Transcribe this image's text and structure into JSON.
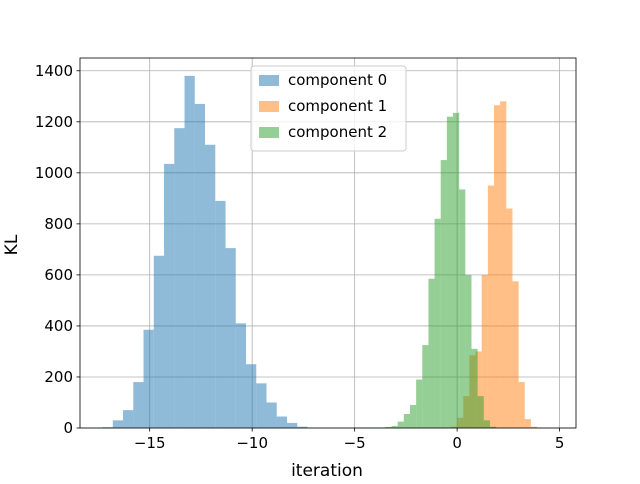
{
  "chart_data": {
    "type": "bar",
    "title": "",
    "xlabel": "iteration",
    "ylabel": "KL",
    "xlim": [
      -18.4,
      5.8
    ],
    "ylim": [
      0,
      1450
    ],
    "xticks": [
      -15,
      -10,
      -5,
      0,
      5
    ],
    "xtick_labels": [
      "−15",
      "−10",
      "−5",
      "0",
      "5"
    ],
    "yticks": [
      0,
      200,
      400,
      600,
      800,
      1000,
      1200,
      1400
    ],
    "ytick_labels": [
      "0",
      "200",
      "400",
      "600",
      "800",
      "1000",
      "1200",
      "1400"
    ],
    "grid": true,
    "legend_position": "top-center",
    "series": [
      {
        "name": "component 0",
        "color": "#1f77b4",
        "opacity": 0.5,
        "bins": [
          {
            "x0": -17.3,
            "x1": -16.8,
            "count": 3
          },
          {
            "x0": -16.8,
            "x1": -16.3,
            "count": 30
          },
          {
            "x0": -16.3,
            "x1": -15.8,
            "count": 70
          },
          {
            "x0": -15.8,
            "x1": -15.3,
            "count": 180
          },
          {
            "x0": -15.3,
            "x1": -14.8,
            "count": 385
          },
          {
            "x0": -14.8,
            "x1": -14.3,
            "count": 675
          },
          {
            "x0": -14.3,
            "x1": -13.8,
            "count": 1035
          },
          {
            "x0": -13.8,
            "x1": -13.3,
            "count": 1175
          },
          {
            "x0": -13.3,
            "x1": -12.8,
            "count": 1380
          },
          {
            "x0": -12.8,
            "x1": -12.3,
            "count": 1270
          },
          {
            "x0": -12.3,
            "x1": -11.8,
            "count": 1110
          },
          {
            "x0": -11.8,
            "x1": -11.3,
            "count": 890
          },
          {
            "x0": -11.3,
            "x1": -10.8,
            "count": 705
          },
          {
            "x0": -10.8,
            "x1": -10.3,
            "count": 410
          },
          {
            "x0": -10.3,
            "x1": -9.8,
            "count": 250
          },
          {
            "x0": -9.8,
            "x1": -9.3,
            "count": 175
          },
          {
            "x0": -9.3,
            "x1": -8.8,
            "count": 100
          },
          {
            "x0": -8.8,
            "x1": -8.3,
            "count": 45
          },
          {
            "x0": -8.3,
            "x1": -7.8,
            "count": 20
          },
          {
            "x0": -7.8,
            "x1": -7.3,
            "count": 5
          }
        ]
      },
      {
        "name": "component 1",
        "color": "#ff7f0e",
        "opacity": 0.5,
        "bins": [
          {
            "x0": -0.3,
            "x1": 0.0,
            "count": 5
          },
          {
            "x0": 0.0,
            "x1": 0.3,
            "count": 40
          },
          {
            "x0": 0.3,
            "x1": 0.6,
            "count": 125
          },
          {
            "x0": 0.6,
            "x1": 0.9,
            "count": 285
          },
          {
            "x0": 0.9,
            "x1": 1.2,
            "count": 300
          },
          {
            "x0": 1.2,
            "x1": 1.5,
            "count": 600
          },
          {
            "x0": 1.5,
            "x1": 1.8,
            "count": 950
          },
          {
            "x0": 1.8,
            "x1": 2.1,
            "count": 1265
          },
          {
            "x0": 2.1,
            "x1": 2.4,
            "count": 1280
          },
          {
            "x0": 2.4,
            "x1": 2.7,
            "count": 860
          },
          {
            "x0": 2.7,
            "x1": 3.0,
            "count": 575
          },
          {
            "x0": 3.0,
            "x1": 3.3,
            "count": 180
          },
          {
            "x0": 3.3,
            "x1": 3.6,
            "count": 35
          },
          {
            "x0": 3.6,
            "x1": 3.9,
            "count": 5
          }
        ]
      },
      {
        "name": "component 2",
        "color": "#2ca02c",
        "opacity": 0.5,
        "bins": [
          {
            "x0": -5.0,
            "x1": -4.7,
            "count": 2
          },
          {
            "x0": -4.7,
            "x1": -4.4,
            "count": 2
          },
          {
            "x0": -4.4,
            "x1": -4.1,
            "count": 2
          },
          {
            "x0": -4.1,
            "x1": -3.8,
            "count": 2
          },
          {
            "x0": -3.8,
            "x1": -3.5,
            "count": 2
          },
          {
            "x0": -3.5,
            "x1": -3.2,
            "count": 4
          },
          {
            "x0": -3.2,
            "x1": -2.9,
            "count": 8
          },
          {
            "x0": -2.9,
            "x1": -2.6,
            "count": 25
          },
          {
            "x0": -2.6,
            "x1": -2.3,
            "count": 55
          },
          {
            "x0": -2.3,
            "x1": -2.0,
            "count": 90
          },
          {
            "x0": -2.0,
            "x1": -1.7,
            "count": 190
          },
          {
            "x0": -1.7,
            "x1": -1.4,
            "count": 325
          },
          {
            "x0": -1.4,
            "x1": -1.1,
            "count": 585
          },
          {
            "x0": -1.1,
            "x1": -0.8,
            "count": 820
          },
          {
            "x0": -0.8,
            "x1": -0.5,
            "count": 1050
          },
          {
            "x0": -0.5,
            "x1": -0.2,
            "count": 1220
          },
          {
            "x0": -0.2,
            "x1": 0.1,
            "count": 1235
          },
          {
            "x0": 0.1,
            "x1": 0.4,
            "count": 935
          },
          {
            "x0": 0.4,
            "x1": 0.7,
            "count": 600
          },
          {
            "x0": 0.7,
            "x1": 1.0,
            "count": 310
          },
          {
            "x0": 1.0,
            "x1": 1.3,
            "count": 125
          },
          {
            "x0": 1.3,
            "x1": 1.6,
            "count": 30
          },
          {
            "x0": 1.6,
            "x1": 1.9,
            "count": 5
          }
        ]
      }
    ]
  }
}
